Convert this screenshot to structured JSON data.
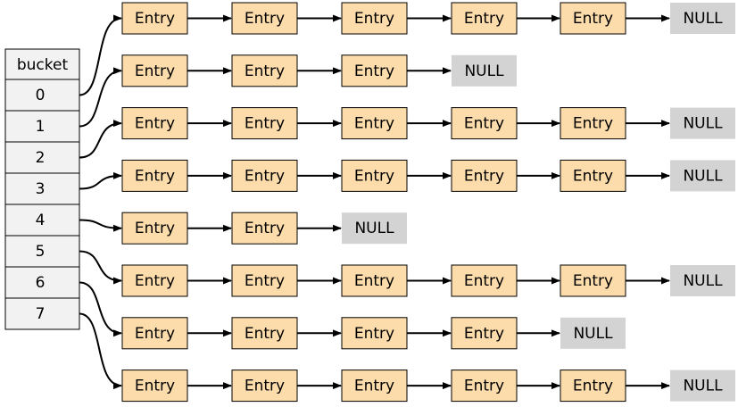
{
  "bucket_header": "bucket",
  "buckets": [
    "0",
    "1",
    "2",
    "3",
    "4",
    "5",
    "6",
    "7"
  ],
  "entry_label": "Entry",
  "null_label": "NULL",
  "chains": [
    5,
    3,
    5,
    5,
    2,
    5,
    4,
    5
  ],
  "colors": {
    "entry_fill": "#fcdcaa",
    "bucket_fill": "#f2f2f2",
    "null_fill": "#d3d3d3",
    "stroke": "#000000"
  }
}
